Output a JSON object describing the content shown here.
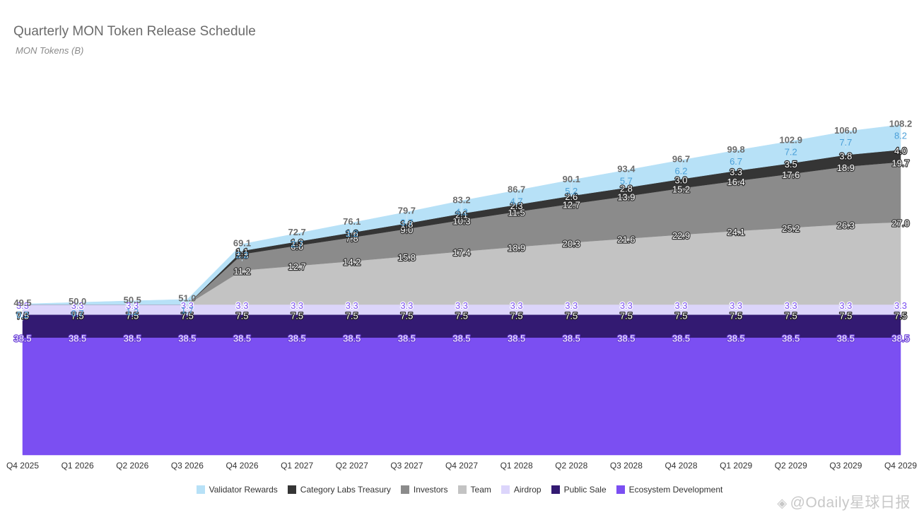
{
  "chart_data": {
    "type": "area",
    "stacked": true,
    "title": "Quarterly MON Token Release Schedule",
    "subtitle": "MON Tokens (B)",
    "xlabel": "",
    "ylabel": "",
    "ylim": [
      0,
      115
    ],
    "grid": false,
    "legend_position": "bottom",
    "categories": [
      "Q4 2025",
      "Q1 2026",
      "Q2 2026",
      "Q3 2026",
      "Q4 2026",
      "Q1 2027",
      "Q2 2027",
      "Q3 2027",
      "Q4 2027",
      "Q1 2028",
      "Q2 2028",
      "Q3 2028",
      "Q4 2028",
      "Q1 2029",
      "Q2 2029",
      "Q3 2029",
      "Q4 2029"
    ],
    "totals": [
      49.5,
      50.0,
      50.5,
      51.0,
      69.1,
      72.7,
      76.1,
      79.7,
      83.2,
      86.7,
      90.1,
      93.4,
      96.7,
      99.8,
      102.9,
      106.0,
      108.2
    ],
    "series": [
      {
        "name": "Ecosystem Development",
        "color": "#7b4ff2",
        "label_color": "#ffffff",
        "label_outline": "#6a3fd8",
        "values": [
          38.5,
          38.5,
          38.5,
          38.5,
          38.5,
          38.5,
          38.5,
          38.5,
          38.5,
          38.5,
          38.5,
          38.5,
          38.5,
          38.5,
          38.5,
          38.5,
          38.5
        ]
      },
      {
        "name": "Public Sale",
        "color": "#331a72",
        "label_color": "#ffffff",
        "label_outline": "#222222",
        "values": [
          7.5,
          7.5,
          7.5,
          7.5,
          7.5,
          7.5,
          7.5,
          7.5,
          7.5,
          7.5,
          7.5,
          7.5,
          7.5,
          7.5,
          7.5,
          7.5,
          7.5
        ]
      },
      {
        "name": "Airdrop",
        "color": "#dcd5fb",
        "label_color": "#7b4ff2",
        "label_outline": "#ffffff",
        "values": [
          3.3,
          3.3,
          3.3,
          3.3,
          3.3,
          3.3,
          3.3,
          3.3,
          3.3,
          3.3,
          3.3,
          3.3,
          3.3,
          3.3,
          3.3,
          3.3,
          3.3
        ]
      },
      {
        "name": "Team",
        "color": "#c3c3c3",
        "label_color": "#ffffff",
        "label_outline": "#333333",
        "values": [
          0,
          0,
          0,
          0,
          11.2,
          12.7,
          14.2,
          15.8,
          17.4,
          18.9,
          20.3,
          21.6,
          22.9,
          24.1,
          25.2,
          26.3,
          27.0
        ]
      },
      {
        "name": "Investors",
        "color": "#8b8b8b",
        "label_color": "#ffffff",
        "label_outline": "#333333",
        "values": [
          0,
          0,
          0,
          0,
          5.3,
          6.6,
          7.8,
          9.0,
          10.3,
          11.5,
          12.7,
          13.9,
          15.2,
          16.4,
          17.6,
          18.9,
          19.7
        ]
      },
      {
        "name": "Category Labs Treasury",
        "color": "#353535",
        "label_color": "#ffffff",
        "label_outline": "#222222",
        "values": [
          0,
          0,
          0,
          0,
          1.1,
          1.3,
          1.6,
          1.8,
          2.1,
          2.3,
          2.6,
          2.8,
          3.0,
          3.3,
          3.5,
          3.8,
          4.0
        ]
      },
      {
        "name": "Validator Rewards",
        "color": "#b7e1f7",
        "label_color": "#4a9fd8",
        "label_outline": "none",
        "values": [
          0.2,
          0.7,
          1.2,
          1.7,
          2.2,
          2.7,
          3.2,
          3.7,
          4.2,
          4.7,
          5.2,
          5.7,
          6.2,
          6.7,
          7.2,
          7.7,
          8.2
        ]
      }
    ],
    "legend_order": [
      "Validator Rewards",
      "Category Labs Treasury",
      "Investors",
      "Team",
      "Airdrop",
      "Public Sale",
      "Ecosystem Development"
    ]
  },
  "watermark": "@Odaily星球日报",
  "watermark_icon": "diamond-logo-icon"
}
